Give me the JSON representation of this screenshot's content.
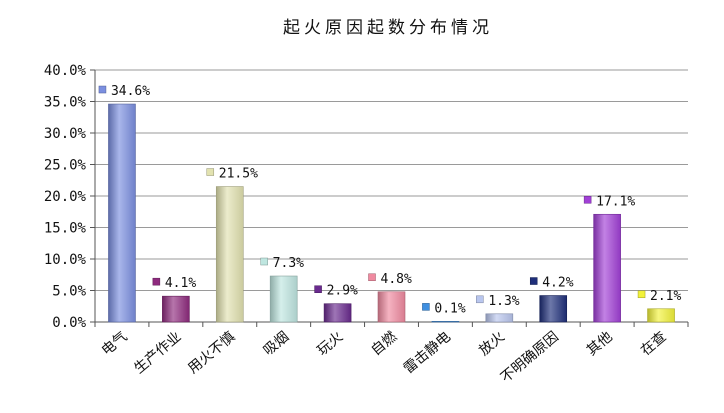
{
  "chart_data": {
    "type": "bar",
    "title": "起火原因起数分布情况",
    "categories": [
      "电气",
      "生产作业",
      "用火不慎",
      "吸烟",
      "玩火",
      "自燃",
      "雷击静电",
      "放火",
      "不明确原因",
      "其他",
      "在查"
    ],
    "values": [
      34.6,
      4.1,
      21.5,
      7.3,
      2.9,
      4.8,
      0.1,
      1.3,
      4.2,
      17.1,
      2.1
    ],
    "value_labels": [
      "34.6%",
      "4.1%",
      "21.5%",
      "7.3%",
      "2.9%",
      "4.8%",
      "0.1%",
      "1.3%",
      "4.2%",
      "17.1%",
      "2.1%"
    ],
    "colors": [
      "#7b8fe0",
      "#8e2a7e",
      "#e2e2b0",
      "#bfe6e0",
      "#6a2a8e",
      "#f08aa0",
      "#3f8fe0",
      "#b9c6ee",
      "#1f2f7a",
      "#a13fd6",
      "#f2f23a"
    ],
    "ylim": [
      0,
      40
    ],
    "yticks": [
      "0.0%",
      "5.0%",
      "10.0%",
      "15.0%",
      "20.0%",
      "25.0%",
      "30.0%",
      "35.0%",
      "40.0%"
    ],
    "grid": true,
    "xlabel": "",
    "ylabel": ""
  }
}
